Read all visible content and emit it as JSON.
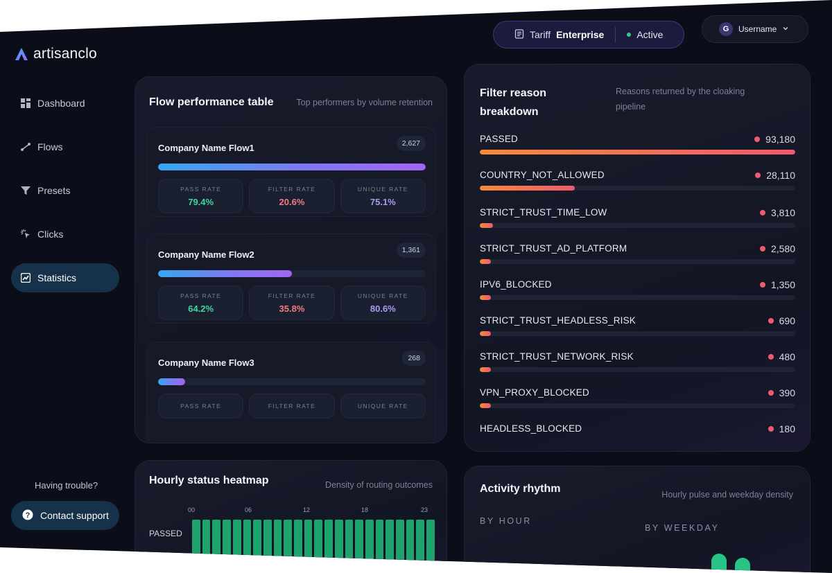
{
  "brand": {
    "name": "artisanclo"
  },
  "sidebar": {
    "items": [
      {
        "label": "Dashboard",
        "icon": "grid-icon"
      },
      {
        "label": "Flows",
        "icon": "flows-icon"
      },
      {
        "label": "Presets",
        "icon": "filter-icon"
      },
      {
        "label": "Clicks",
        "icon": "click-icon"
      },
      {
        "label": "Statistics",
        "icon": "chart-icon",
        "active": true
      }
    ],
    "trouble_text": "Having trouble?",
    "support_label": "Contact support"
  },
  "topbar": {
    "tariff_label": "Tariff",
    "tariff_value": "Enterprise",
    "status": "Active",
    "username": "Username",
    "avatar_letter": "G"
  },
  "flow_table": {
    "title": "Flow performance table",
    "subtitle": "Top performers by volume retention",
    "stat_labels": {
      "pass": "PASS RATE",
      "filter": "FILTER RATE",
      "unique": "UNIQUE RATE"
    },
    "flows": [
      {
        "name": "Company Name Flow1",
        "count": "2,627",
        "volume_fraction": 1.0,
        "pass_rate": "79.4%",
        "filter_rate": "20.6%",
        "unique_rate": "75.1%"
      },
      {
        "name": "Company Name Flow2",
        "count": "1,361",
        "volume_fraction": 0.5,
        "pass_rate": "64.2%",
        "filter_rate": "35.8%",
        "unique_rate": "80.6%"
      },
      {
        "name": "Company Name Flow3",
        "count": "268",
        "volume_fraction": 0.1
      }
    ]
  },
  "filter_reasons": {
    "title": "Filter reason breakdown",
    "subtitle": "Reasons returned by the cloaking pipeline",
    "max": 93180,
    "items": [
      {
        "label": "PASSED",
        "value": 93180,
        "display": "93,180"
      },
      {
        "label": "COUNTRY_NOT_ALLOWED",
        "value": 28110,
        "display": "28,110"
      },
      {
        "label": "STRICT_TRUST_TIME_LOW",
        "value": 3810,
        "display": "3,810"
      },
      {
        "label": "STRICT_TRUST_AD_PLATFORM",
        "value": 2580,
        "display": "2,580"
      },
      {
        "label": "IPV6_BLOCKED",
        "value": 1350,
        "display": "1,350"
      },
      {
        "label": "STRICT_TRUST_HEADLESS_RISK",
        "value": 690,
        "display": "690"
      },
      {
        "label": "STRICT_TRUST_NETWORK_RISK",
        "value": 480,
        "display": "480"
      },
      {
        "label": "VPN_PROXY_BLOCKED",
        "value": 390,
        "display": "390"
      },
      {
        "label": "HEADLESS_BLOCKED",
        "value": 180,
        "display": "180"
      }
    ]
  },
  "heatmap": {
    "title": "Hourly status heatmap",
    "subtitle": "Density of routing outcomes",
    "hour_ticks": [
      "00",
      "06",
      "12",
      "18",
      "23"
    ],
    "row_label": "PASSED",
    "hours": 24
  },
  "activity": {
    "title": "Activity rhythm",
    "subtitle": "Hourly pulse and weekday density",
    "by_hour_label": "BY HOUR",
    "by_weekday_label": "BY WEEKDAY"
  },
  "colors": {
    "accent_green": "#3ed69a",
    "accent_pink": "#f27a84",
    "accent_purple": "#a99af5",
    "status_active": "#2ecf8a"
  }
}
